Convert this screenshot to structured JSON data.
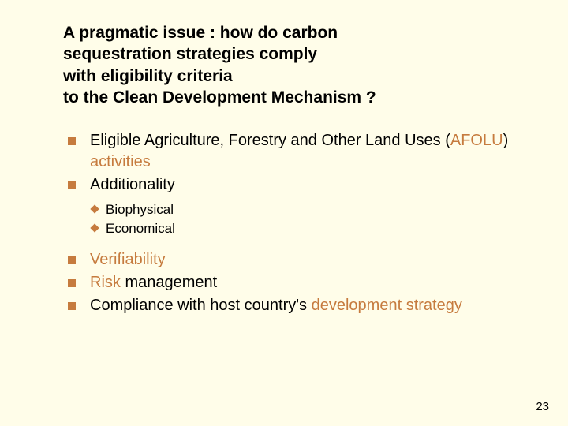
{
  "background_color": "#fffde9",
  "accent_color": "#c67b3e",
  "text_color": "#000000",
  "title_fontsize": 21,
  "body_fontsize": 20,
  "sub_fontsize": 17,
  "title": {
    "line1": "A pragmatic issue : how do carbon",
    "line2": "sequestration strategies comply",
    "line3": "with eligibility criteria",
    "line4": "to the Clean Development Mechanism ?"
  },
  "bullets": {
    "b1_pre": "Eligible Agriculture, Forestry and Other Land Uses (",
    "b1_afolu": "AFOLU",
    "b1_post": ") ",
    "b1_activities": "activities",
    "b2": "Additionality",
    "sub1": "Biophysical",
    "sub2": "Economical",
    "b3": "Verifiability",
    "b4_risk": "Risk",
    "b4_rest": " management",
    "b5_pre": "Compliance with host country's ",
    "b5_dev": "development strategy"
  },
  "page_number": "23"
}
